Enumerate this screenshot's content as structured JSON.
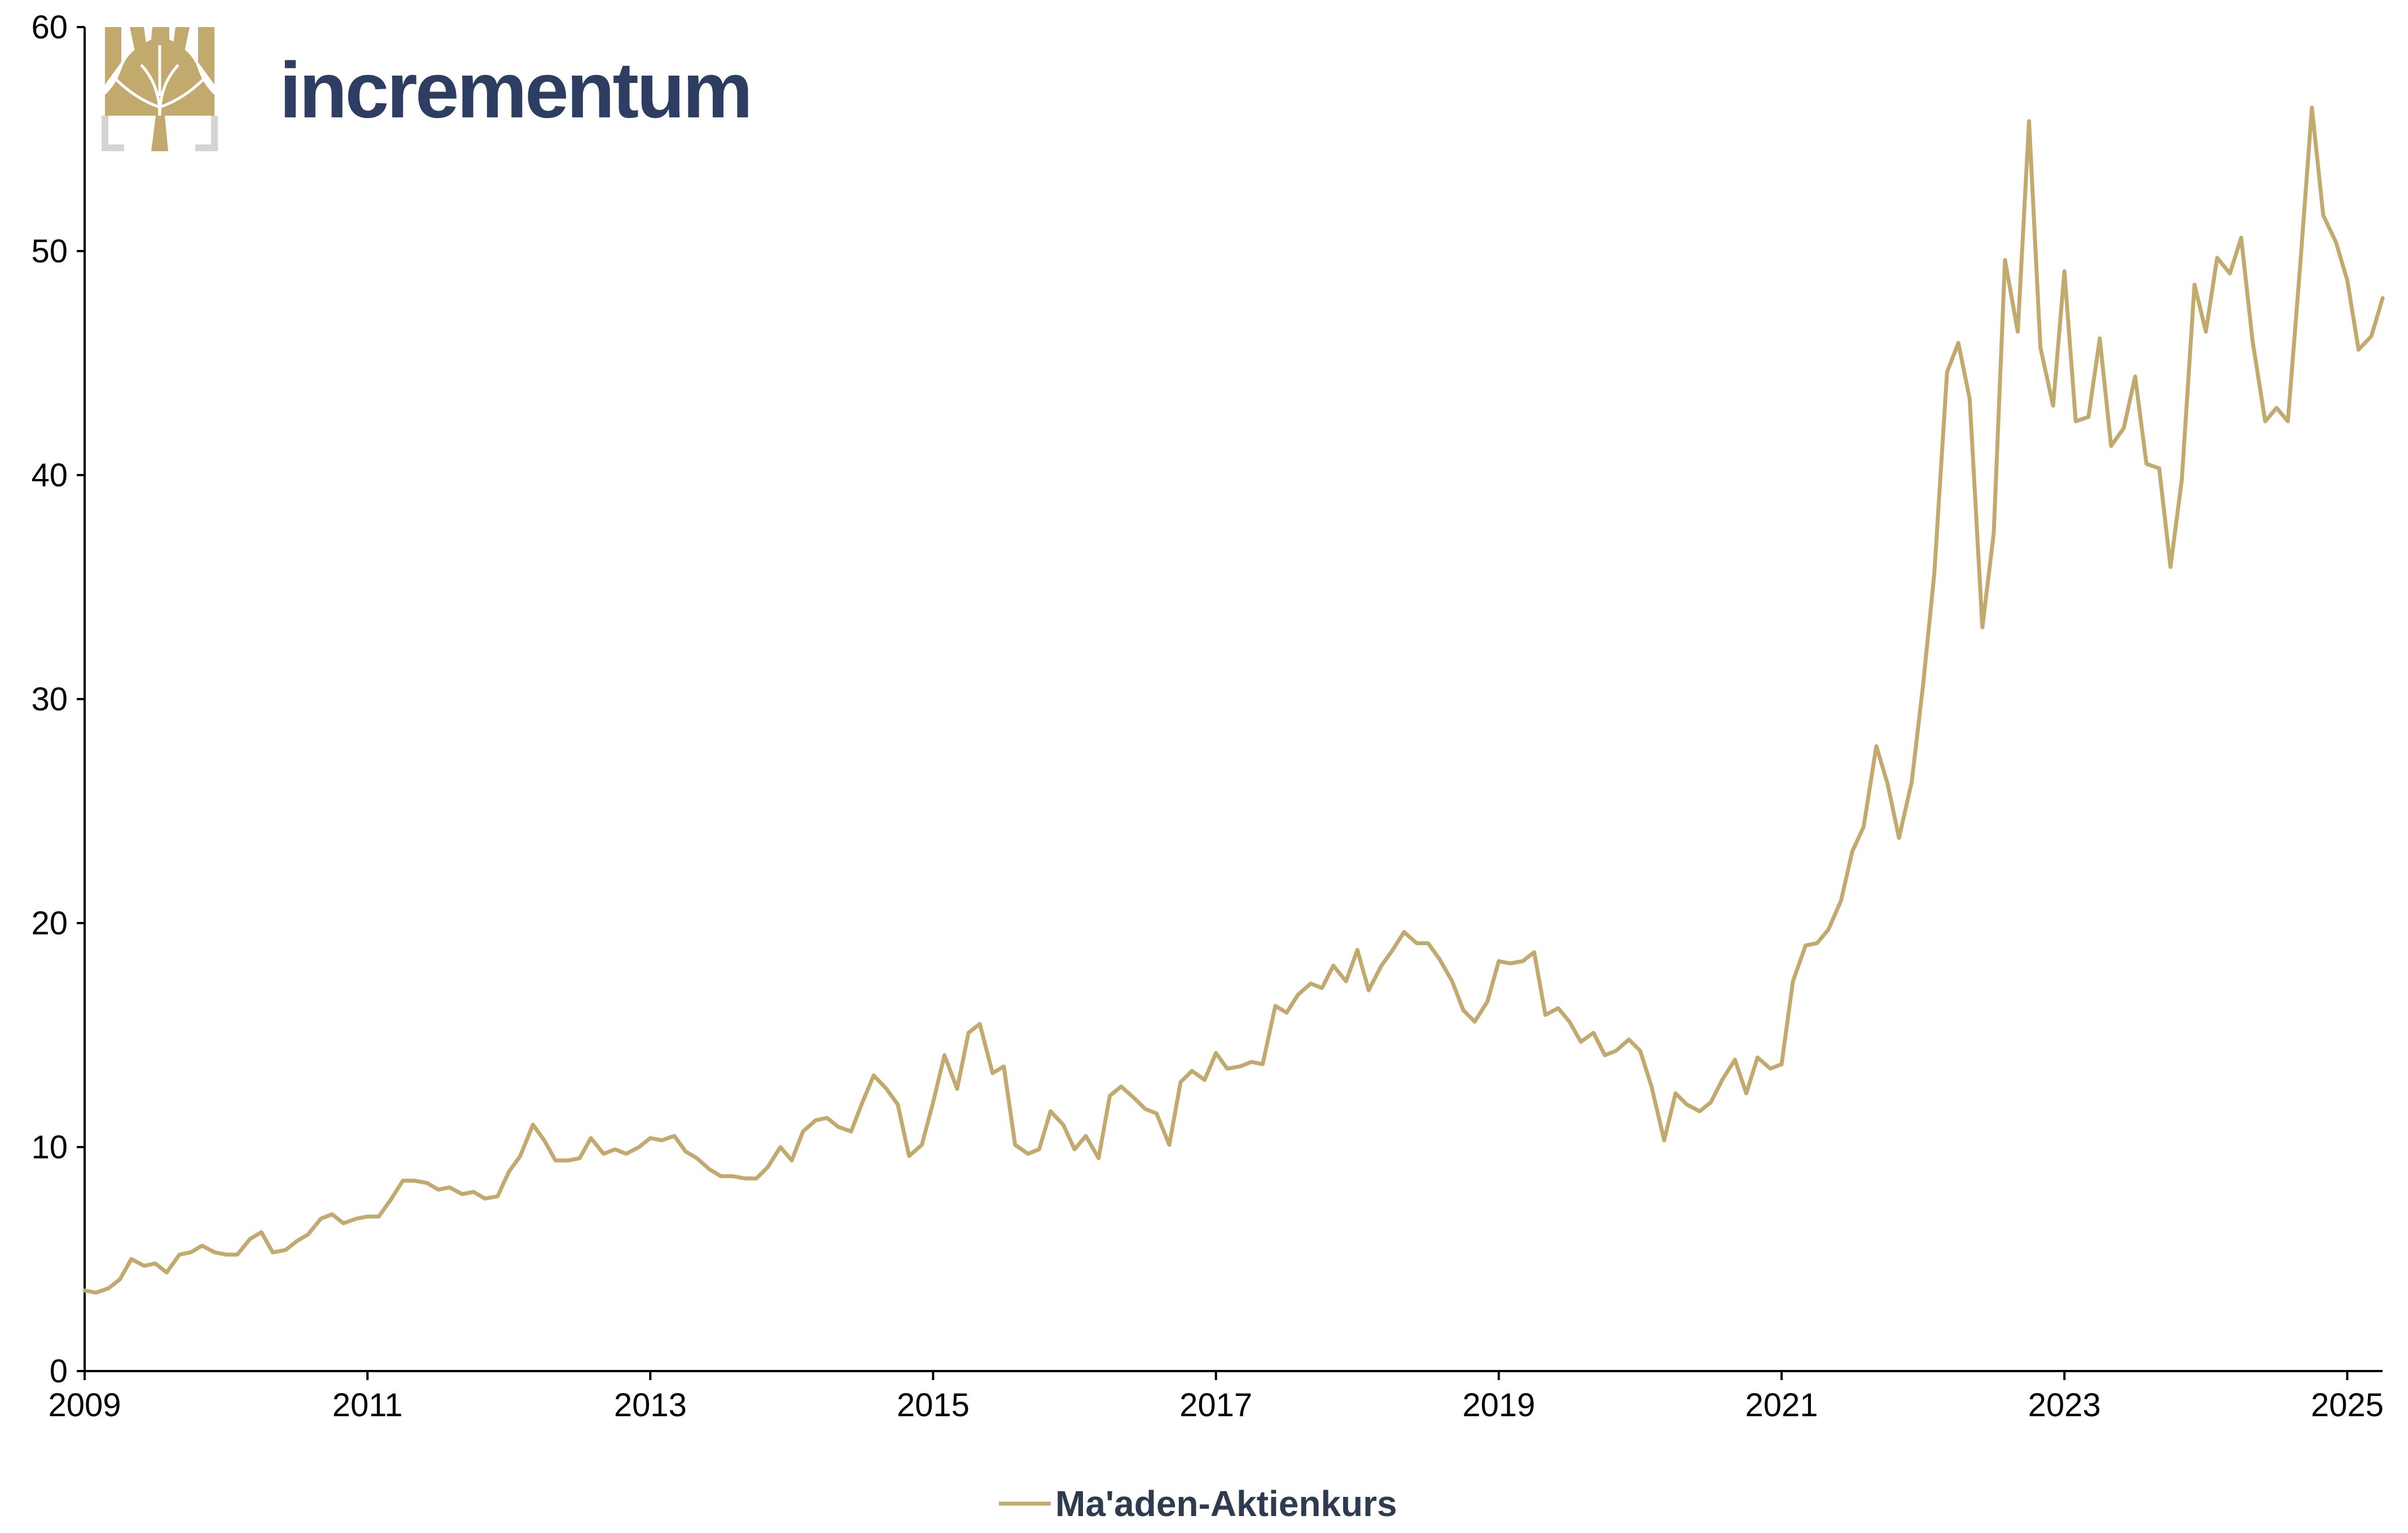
{
  "brand": {
    "name": "incrementum",
    "gold": "#c2a96e",
    "navy": "#2e3e63",
    "logo_icon": "tree-icon"
  },
  "chart_data": {
    "type": "line",
    "title": "",
    "xlabel": "",
    "ylabel": "",
    "xlim": [
      2009.0,
      2025.25
    ],
    "ylim": [
      0,
      60
    ],
    "x_ticks": [
      "2009",
      "2011",
      "2013",
      "2015",
      "2017",
      "2019",
      "2021",
      "2023",
      "2025"
    ],
    "y_ticks": [
      "0",
      "10",
      "20",
      "30",
      "40",
      "50",
      "60"
    ],
    "grid": false,
    "legend": "bottom-center",
    "series": [
      {
        "name": "Ma'aden-Aktienkurs",
        "color": "#c2a96e",
        "x": [
          2009.0,
          2009.08,
          2009.17,
          2009.25,
          2009.33,
          2009.42,
          2009.5,
          2009.58,
          2009.67,
          2009.75,
          2009.83,
          2009.92,
          2010.0,
          2010.08,
          2010.17,
          2010.25,
          2010.33,
          2010.42,
          2010.5,
          2010.58,
          2010.67,
          2010.75,
          2010.83,
          2010.92,
          2011.0,
          2011.08,
          2011.17,
          2011.25,
          2011.33,
          2011.42,
          2011.5,
          2011.58,
          2011.67,
          2011.75,
          2011.83,
          2011.92,
          2012.0,
          2012.08,
          2012.17,
          2012.25,
          2012.33,
          2012.42,
          2012.5,
          2012.58,
          2012.67,
          2012.75,
          2012.83,
          2012.92,
          2013.0,
          2013.08,
          2013.17,
          2013.25,
          2013.33,
          2013.42,
          2013.5,
          2013.58,
          2013.67,
          2013.75,
          2013.83,
          2013.92,
          2014.0,
          2014.08,
          2014.17,
          2014.25,
          2014.33,
          2014.42,
          2014.5,
          2014.58,
          2014.67,
          2014.75,
          2014.83,
          2014.92,
          2015.0,
          2015.08,
          2015.17,
          2015.25,
          2015.33,
          2015.42,
          2015.5,
          2015.58,
          2015.67,
          2015.75,
          2015.83,
          2015.92,
          2016.0,
          2016.08,
          2016.17,
          2016.25,
          2016.33,
          2016.42,
          2016.5,
          2016.58,
          2016.67,
          2016.75,
          2016.83,
          2016.92,
          2017.0,
          2017.08,
          2017.17,
          2017.25,
          2017.33,
          2017.42,
          2017.5,
          2017.58,
          2017.67,
          2017.75,
          2017.83,
          2017.92,
          2018.0,
          2018.08,
          2018.17,
          2018.25,
          2018.33,
          2018.42,
          2018.5,
          2018.58,
          2018.67,
          2018.75,
          2018.83,
          2018.92,
          2019.0,
          2019.08,
          2019.17,
          2019.25,
          2019.33,
          2019.42,
          2019.5,
          2019.58,
          2019.67,
          2019.75,
          2019.83,
          2019.92,
          2020.0,
          2020.08,
          2020.17,
          2020.25,
          2020.33,
          2020.42,
          2020.5,
          2020.58,
          2020.67,
          2020.75,
          2020.83,
          2020.92,
          2021.0,
          2021.08,
          2021.17,
          2021.25,
          2021.33,
          2021.42,
          2021.5,
          2021.58,
          2021.67,
          2021.75,
          2021.83,
          2021.92,
          2022.0,
          2022.08,
          2022.17,
          2022.25,
          2022.33,
          2022.42,
          2022.5,
          2022.58,
          2022.67,
          2022.75,
          2022.83,
          2022.92,
          2023.0,
          2023.08,
          2023.17,
          2023.25,
          2023.33,
          2023.42,
          2023.5,
          2023.58,
          2023.67,
          2023.75,
          2023.83,
          2023.92,
          2024.0,
          2024.08,
          2024.17,
          2024.25,
          2024.33,
          2024.42,
          2024.5,
          2024.58,
          2024.67,
          2024.75,
          2024.83,
          2024.92,
          2025.0,
          2025.08,
          2025.17,
          2025.25
        ],
        "values": [
          3.6,
          3.5,
          3.7,
          4.1,
          5.0,
          4.7,
          4.8,
          4.4,
          5.2,
          5.3,
          5.6,
          5.3,
          5.2,
          5.2,
          5.9,
          6.2,
          5.3,
          5.4,
          5.8,
          6.1,
          6.8,
          7.0,
          6.6,
          6.8,
          6.9,
          6.9,
          7.7,
          8.5,
          8.5,
          8.4,
          8.1,
          8.2,
          7.9,
          8.0,
          7.7,
          7.8,
          8.9,
          9.6,
          11.0,
          10.3,
          9.4,
          9.4,
          9.5,
          10.4,
          9.7,
          9.9,
          9.7,
          10.0,
          10.4,
          10.3,
          10.5,
          9.8,
          9.5,
          9.0,
          8.7,
          8.7,
          8.6,
          8.6,
          9.1,
          10.0,
          9.4,
          10.7,
          11.2,
          11.3,
          10.9,
          10.7,
          12.0,
          13.2,
          12.6,
          11.9,
          9.6,
          10.1,
          12.0,
          14.1,
          12.6,
          15.1,
          15.5,
          13.3,
          13.6,
          10.1,
          9.7,
          9.9,
          11.6,
          11.0,
          9.9,
          10.5,
          9.5,
          12.3,
          12.7,
          12.2,
          11.7,
          11.5,
          10.1,
          12.9,
          13.4,
          13.0,
          14.2,
          13.5,
          13.6,
          13.8,
          13.7,
          16.3,
          16.0,
          16.8,
          17.3,
          17.1,
          18.1,
          17.4,
          18.8,
          17.0,
          18.1,
          18.8,
          19.6,
          19.1,
          19.1,
          18.4,
          17.4,
          16.1,
          15.6,
          16.5,
          18.3,
          18.2,
          18.3,
          18.7,
          15.9,
          16.2,
          15.6,
          14.7,
          15.1,
          14.1,
          14.3,
          14.8,
          14.3,
          12.7,
          10.3,
          12.4,
          11.9,
          11.6,
          12.0,
          13.0,
          13.9,
          12.4,
          14.0,
          13.5,
          13.7,
          17.4,
          19.0,
          19.1,
          19.7,
          21.0,
          23.2,
          24.3,
          27.9,
          26.2,
          23.8,
          26.3,
          30.6,
          35.6,
          44.6,
          45.9,
          43.4,
          33.2,
          37.4,
          49.6,
          46.4,
          55.8,
          45.7,
          43.1,
          49.1,
          42.4,
          42.6,
          46.1,
          41.3,
          42.1,
          44.4,
          40.5,
          40.3,
          35.9,
          39.8,
          48.5,
          46.4,
          49.7,
          49.0,
          50.6,
          46.0,
          42.4,
          43.0,
          42.4,
          49.6,
          56.4,
          51.6,
          50.4,
          48.7,
          45.6,
          46.2,
          47.9
        ]
      }
    ]
  }
}
